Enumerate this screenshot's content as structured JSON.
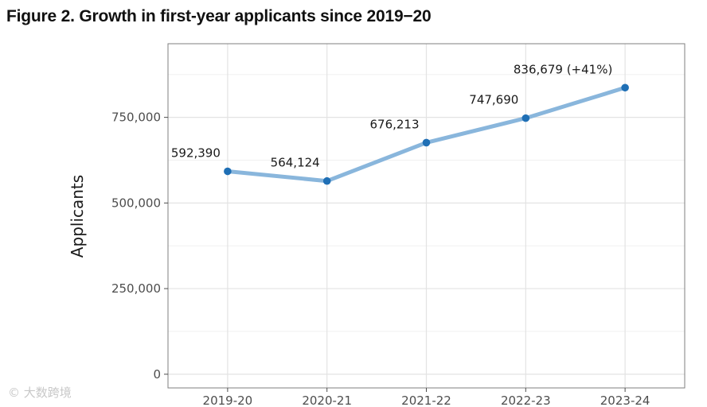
{
  "title": "Figure 2. Growth in first-year applicants since 2019−20",
  "watermark": "© 大数跨境",
  "colors": {
    "line": "#89b6dc",
    "point": "#1f6fb5",
    "grid_major": "#e3e3e3",
    "grid_minor": "#f0f0f0",
    "panel_border": "#7f7f7f"
  },
  "chart_data": {
    "type": "line",
    "title": "Figure 2. Growth in first-year applicants since 2019−20",
    "xlabel": "",
    "ylabel": "Applicants",
    "categories": [
      "2019-20",
      "2020-21",
      "2021-22",
      "2022-23",
      "2023-24"
    ],
    "values": [
      592390,
      564124,
      676213,
      747690,
      836679
    ],
    "data_labels": [
      "592,390",
      "564,124",
      "676,213",
      "747,690",
      "836,679 (+41%)"
    ],
    "ylim": [
      -40000,
      965000
    ],
    "yticks": [
      0,
      250000,
      500000,
      750000
    ],
    "ytick_labels": [
      "0",
      "250,000",
      "500,000",
      "750,000"
    ],
    "grid": true,
    "legend": "none"
  }
}
